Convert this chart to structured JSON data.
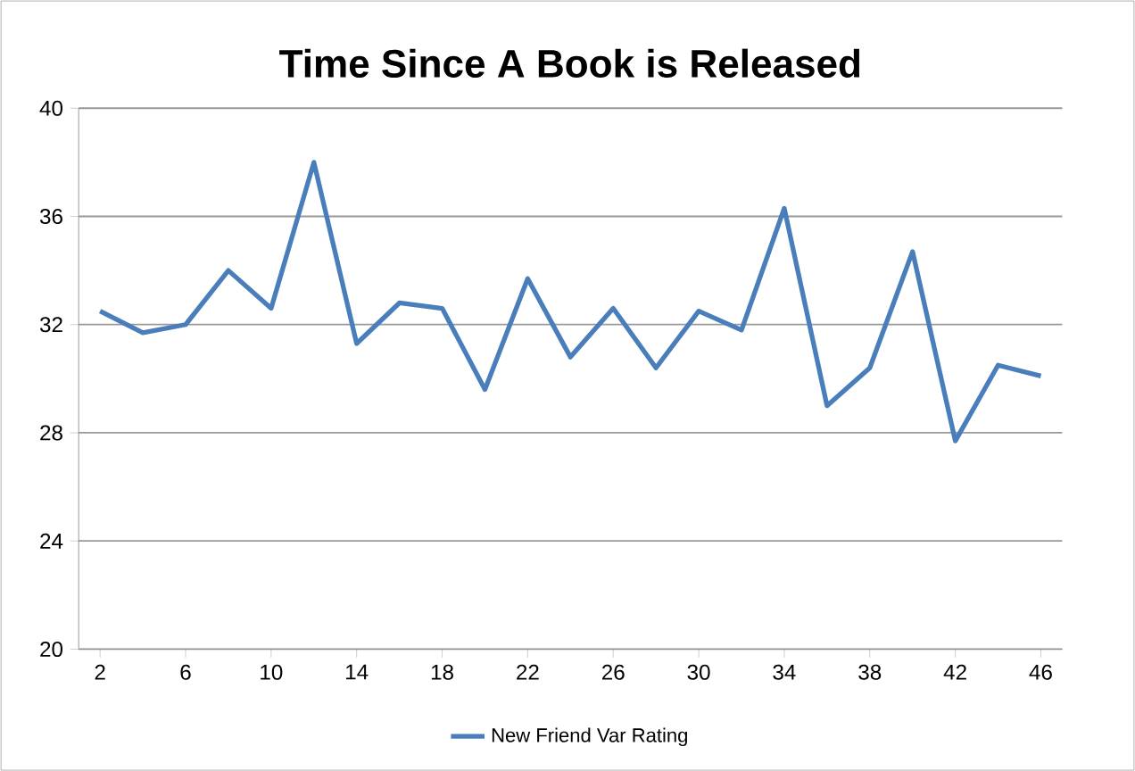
{
  "chart_data": {
    "type": "line",
    "title": "Time Since A Book is Released",
    "x": [
      2,
      4,
      6,
      8,
      10,
      12,
      14,
      16,
      18,
      20,
      22,
      24,
      26,
      28,
      30,
      32,
      34,
      36,
      38,
      40,
      42,
      44,
      46
    ],
    "series": [
      {
        "name": "New Friend Var Rating",
        "color": "#4a7ebb",
        "values": [
          32.5,
          31.7,
          32.0,
          34.0,
          32.6,
          38.0,
          31.3,
          32.8,
          32.6,
          29.6,
          33.7,
          30.8,
          32.6,
          30.4,
          32.5,
          31.8,
          36.3,
          29.0,
          30.4,
          34.7,
          27.7,
          30.5,
          30.1
        ]
      }
    ],
    "xlim": [
      1,
      47
    ],
    "xticks": [
      2,
      6,
      10,
      14,
      18,
      22,
      26,
      30,
      34,
      38,
      42,
      46
    ],
    "ylim": [
      20,
      40
    ],
    "yticks": [
      20,
      24,
      28,
      32,
      36,
      40
    ],
    "grid": "y",
    "legend": "bottom",
    "marker": "none",
    "line_style": "solid"
  }
}
